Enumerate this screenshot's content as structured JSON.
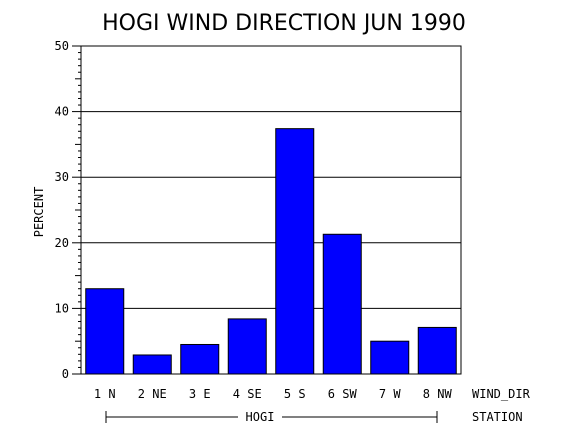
{
  "chart_data": {
    "type": "bar",
    "title": "HOGI WIND DIRECTION JUN 1990",
    "ylabel": "PERCENT",
    "xlabel": "WIND_DIR",
    "group_axis_label": "STATION",
    "group_label": "HOGI",
    "categories": [
      "1 N",
      "2 NE",
      "3 E",
      "4 SE",
      "5 S",
      "6 SW",
      "7 W",
      "8 NW"
    ],
    "values": [
      13.0,
      2.9,
      4.5,
      8.4,
      37.4,
      21.3,
      5.0,
      7.1
    ],
    "ylim": [
      0,
      50
    ],
    "yticks": [
      "0",
      "10",
      "20",
      "30",
      "40",
      "50"
    ],
    "bar_color": "#0000ff",
    "grid": true
  }
}
